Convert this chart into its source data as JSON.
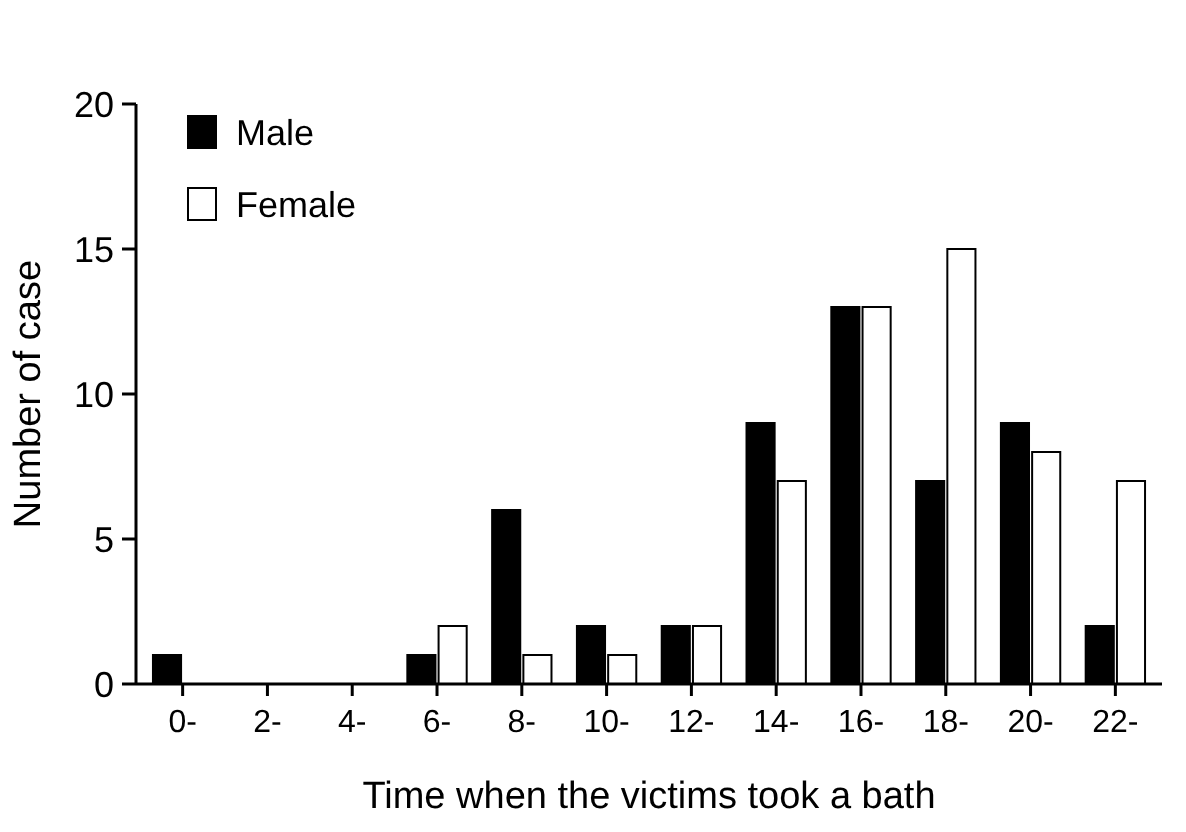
{
  "chart_data": {
    "type": "bar",
    "xlabel": "Time when the victims took a bath",
    "ylabel": "Number of case",
    "categories": [
      "0-",
      "2-",
      "4-",
      "6-",
      "8-",
      "10-",
      "12-",
      "14-",
      "16-",
      "18-",
      "20-",
      "22-"
    ],
    "series": [
      {
        "name": "Male",
        "color": "#000000",
        "values": [
          1,
          0,
          0,
          1,
          6,
          2,
          2,
          9,
          13,
          7,
          9,
          2
        ]
      },
      {
        "name": "Female",
        "color": "#ffffff",
        "values": [
          0,
          0,
          0,
          2,
          1,
          1,
          2,
          7,
          13,
          15,
          8,
          7
        ]
      }
    ],
    "ylim": [
      0,
      20
    ],
    "yticks": [
      0,
      5,
      10,
      15,
      20
    ],
    "grid": false,
    "legend": "top left"
  }
}
